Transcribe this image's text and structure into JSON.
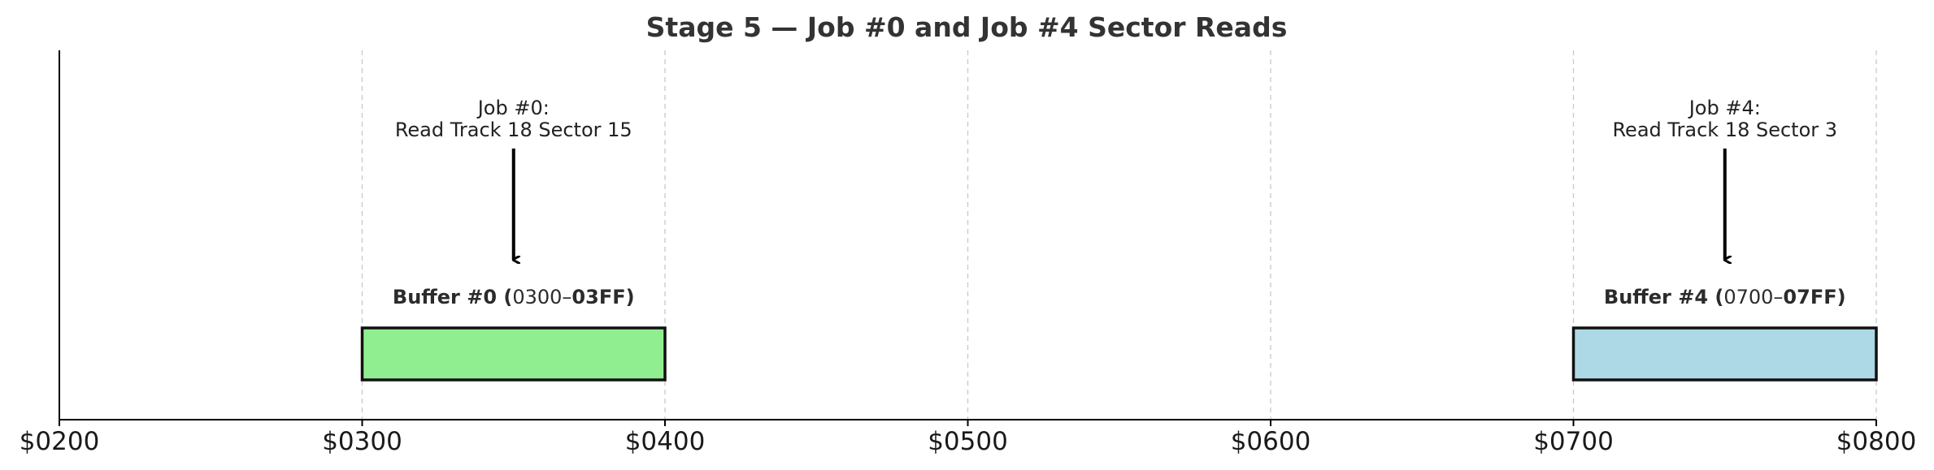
{
  "chart_data": {
    "type": "bar",
    "title": "Stage 5 — Job #0 and Job #4 Sector Reads",
    "xlabel": "",
    "ylabel": "",
    "x_range": [
      "$0200",
      "$0800"
    ],
    "x_ticks": [
      "$0200",
      "$0300",
      "$0400",
      "$0500",
      "$0600",
      "$0700",
      "$0800"
    ],
    "grid": "x dashed",
    "buffers": [
      {
        "label_bold_prefix": "Buffer #0 (",
        "label_range_start": "0300–",
        "label_bold_suffix": "03FF)",
        "start": "$0300",
        "end": "$0400",
        "color": "#90EE90",
        "annotation": [
          "Job #0:",
          "Read Track 18 Sector 15"
        ]
      },
      {
        "label_bold_prefix": "Buffer #4 (",
        "label_range_start": "0700–",
        "label_bold_suffix": "07FF)",
        "start": "$0700",
        "end": "$0800",
        "color": "#ADD8E6",
        "annotation": [
          "Job #4:",
          "Read Track 18 Sector 3"
        ]
      }
    ]
  }
}
